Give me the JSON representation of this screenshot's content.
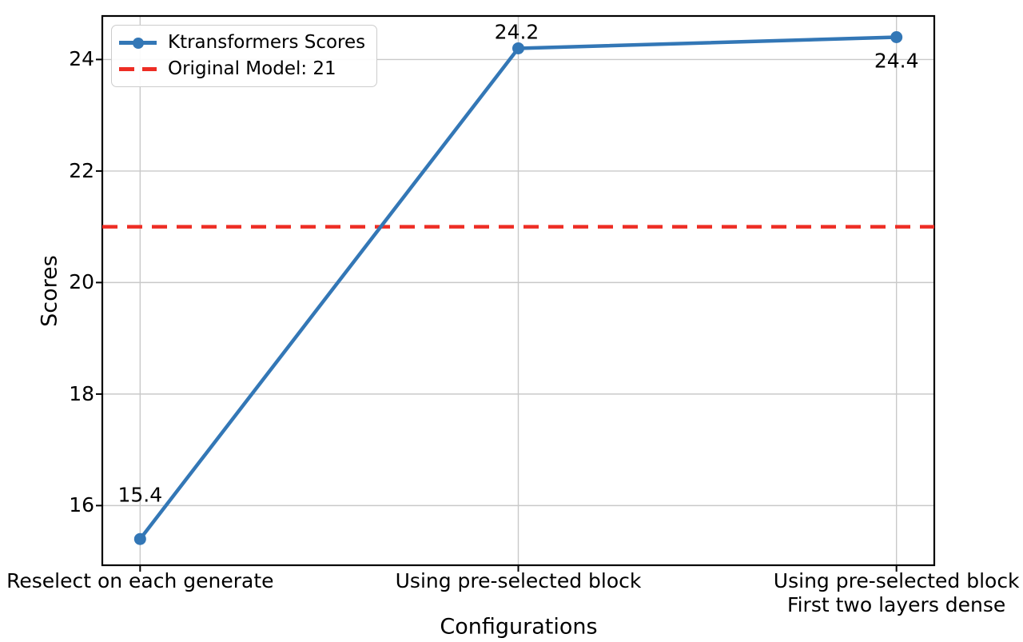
{
  "chart_data": {
    "type": "line",
    "title": "",
    "xlabel": "Configurations",
    "ylabel": "Scores",
    "categories": [
      [
        "Reselect on each generate"
      ],
      [
        "Using pre-selected block"
      ],
      [
        "Using pre-selected block",
        "First two layers dense"
      ]
    ],
    "series": [
      {
        "name": "Ktransformers Scores",
        "values": [
          15.4,
          24.2,
          24.4
        ],
        "color": "#3377b6",
        "marker": "circle",
        "line_style": "solid"
      }
    ],
    "reference_line": {
      "name": "Original Model: 21",
      "value": 21,
      "color": "#ed2d24",
      "line_style": "dashed"
    },
    "point_labels": [
      "15.4",
      "24.2",
      "24.4"
    ],
    "yticks": [
      "16",
      "18",
      "20",
      "22",
      "24"
    ],
    "ytick_values": [
      16,
      18,
      20,
      22,
      24
    ],
    "ylim": [
      14.93,
      24.78
    ],
    "grid": true,
    "grid_color": "#c9c9c9",
    "axis_color": "#000000",
    "legend_position": "upper-left",
    "legend_items": [
      "Ktransformers Scores",
      "Original Model: 21"
    ]
  }
}
